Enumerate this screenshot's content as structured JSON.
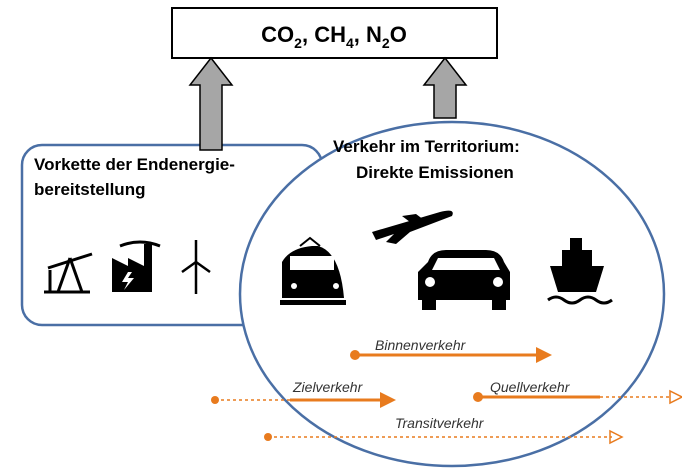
{
  "top_box": {
    "parts": [
      {
        "text": "CO"
      },
      {
        "text": "2",
        "sub": true
      },
      {
        "text": ", CH"
      },
      {
        "text": "4",
        "sub": true
      },
      {
        "text": ", N"
      },
      {
        "text": "2",
        "sub": true
      },
      {
        "text": "O"
      }
    ]
  },
  "left_box": {
    "lines": [
      "Vorkette der Endenergie-",
      "bereitstellung"
    ]
  },
  "circle": {
    "lines": [
      "Verkehr  im Territorium:",
      "Direkte Emissionen"
    ]
  },
  "flows": [
    "Binnenverkehr",
    "Zielverkehr",
    "Quellverkehr",
    "Transitverkehr"
  ]
}
